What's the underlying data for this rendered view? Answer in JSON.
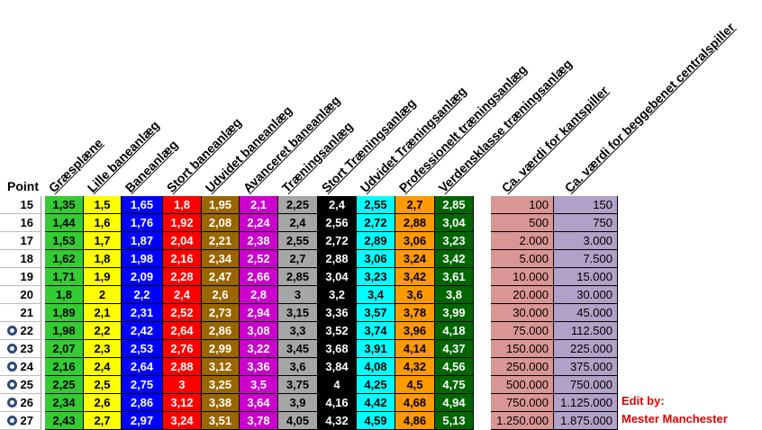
{
  "header": {
    "point_label": "Point",
    "columns": [
      "Græsplæne",
      "Lille baneanlæg",
      "Baneanlæg",
      "Stort baneanlæg",
      "Udvidet baneanlæg",
      "Avanceret baneanlæg",
      "Træningsanlæg",
      "Stort Træningsanlæg",
      "Udvidet Træningsanlæg",
      "Professionelt træningsanlæg",
      "Verdensklasse træningsanlæg"
    ],
    "value_columns": [
      "Ca. værdi for kantspiller",
      "Ca. værdi for beggebenet centralspiller"
    ]
  },
  "column_colors": [
    {
      "bg": "#33cc33",
      "fg": "#000000"
    },
    {
      "bg": "#ffff00",
      "fg": "#000000"
    },
    {
      "bg": "#0000ff",
      "fg": "#ffffff"
    },
    {
      "bg": "#ff0000",
      "fg": "#ffffff"
    },
    {
      "bg": "#996600",
      "fg": "#ffffff"
    },
    {
      "bg": "#cc00cc",
      "fg": "#ffffff"
    },
    {
      "bg": "#a6a6a6",
      "fg": "#000000"
    },
    {
      "bg": "#000000",
      "fg": "#ffffff"
    },
    {
      "bg": "#00ffff",
      "fg": "#000000"
    },
    {
      "bg": "#ff9900",
      "fg": "#000000"
    },
    {
      "bg": "#006600",
      "fg": "#ffffff"
    }
  ],
  "value_colors": [
    "#da9694",
    "#b1a0c7"
  ],
  "rows": [
    {
      "point": "15",
      "badge": false,
      "values": [
        "1,35",
        "1,5",
        "1,65",
        "1,8",
        "1,95",
        "2,1",
        "2,25",
        "2,4",
        "2,55",
        "2,7",
        "2,85"
      ],
      "kant": "100",
      "central": "150"
    },
    {
      "point": "16",
      "badge": false,
      "values": [
        "1,44",
        "1,6",
        "1,76",
        "1,92",
        "2,08",
        "2,24",
        "2,4",
        "2,56",
        "2,72",
        "2,88",
        "3,04"
      ],
      "kant": "500",
      "central": "750"
    },
    {
      "point": "17",
      "badge": false,
      "values": [
        "1,53",
        "1,7",
        "1,87",
        "2,04",
        "2,21",
        "2,38",
        "2,55",
        "2,72",
        "2,89",
        "3,06",
        "3,23"
      ],
      "kant": "2.000",
      "central": "3.000"
    },
    {
      "point": "18",
      "badge": false,
      "values": [
        "1,62",
        "1,8",
        "1,98",
        "2,16",
        "2,34",
        "2,52",
        "2,7",
        "2,88",
        "3,06",
        "3,24",
        "3,42"
      ],
      "kant": "5.000",
      "central": "7.500"
    },
    {
      "point": "19",
      "badge": false,
      "values": [
        "1,71",
        "1,9",
        "2,09",
        "2,28",
        "2,47",
        "2,66",
        "2,85",
        "3,04",
        "3,23",
        "3,42",
        "3,61"
      ],
      "kant": "10.000",
      "central": "15.000"
    },
    {
      "point": "20",
      "badge": false,
      "values": [
        "1,8",
        "2",
        "2,2",
        "2,4",
        "2,6",
        "2,8",
        "3",
        "3,2",
        "3,4",
        "3,6",
        "3,8"
      ],
      "kant": "20.000",
      "central": "30.000"
    },
    {
      "point": "21",
      "badge": false,
      "values": [
        "1,89",
        "2,1",
        "2,31",
        "2,52",
        "2,73",
        "2,94",
        "3,15",
        "3,36",
        "3,57",
        "3,78",
        "3,99"
      ],
      "kant": "30.000",
      "central": "45.000"
    },
    {
      "point": "22",
      "badge": true,
      "values": [
        "1,98",
        "2,2",
        "2,42",
        "2,64",
        "2,86",
        "3,08",
        "3,3",
        "3,52",
        "3,74",
        "3,96",
        "4,18"
      ],
      "kant": "75.000",
      "central": "112.500"
    },
    {
      "point": "23",
      "badge": true,
      "values": [
        "2,07",
        "2,3",
        "2,53",
        "2,76",
        "2,99",
        "3,22",
        "3,45",
        "3,68",
        "3,91",
        "4,14",
        "4,37"
      ],
      "kant": "150.000",
      "central": "225.000"
    },
    {
      "point": "24",
      "badge": true,
      "values": [
        "2,16",
        "2,4",
        "2,64",
        "2,88",
        "3,12",
        "3,36",
        "3,6",
        "3,84",
        "4,08",
        "4,32",
        "4,56"
      ],
      "kant": "250.000",
      "central": "375.000"
    },
    {
      "point": "25",
      "badge": true,
      "values": [
        "2,25",
        "2,5",
        "2,75",
        "3",
        "3,25",
        "3,5",
        "3,75",
        "4",
        "4,25",
        "4,5",
        "4,75"
      ],
      "kant": "500.000",
      "central": "750.000"
    },
    {
      "point": "26",
      "badge": true,
      "values": [
        "2,34",
        "2,6",
        "2,86",
        "3,12",
        "3,38",
        "3,64",
        "3,9",
        "4,16",
        "4,42",
        "4,68",
        "4,94"
      ],
      "kant": "750.000",
      "central": "1.125.000"
    },
    {
      "point": "27",
      "badge": true,
      "values": [
        "2,43",
        "2,7",
        "2,97",
        "3,24",
        "3,51",
        "3,78",
        "4,05",
        "4,32",
        "4,59",
        "4,86",
        "5,13"
      ],
      "kant": "1.250.000",
      "central": "1.875.000"
    }
  ],
  "edit_note": {
    "line1": "Edit by:",
    "line2": "Mester Manchester"
  }
}
